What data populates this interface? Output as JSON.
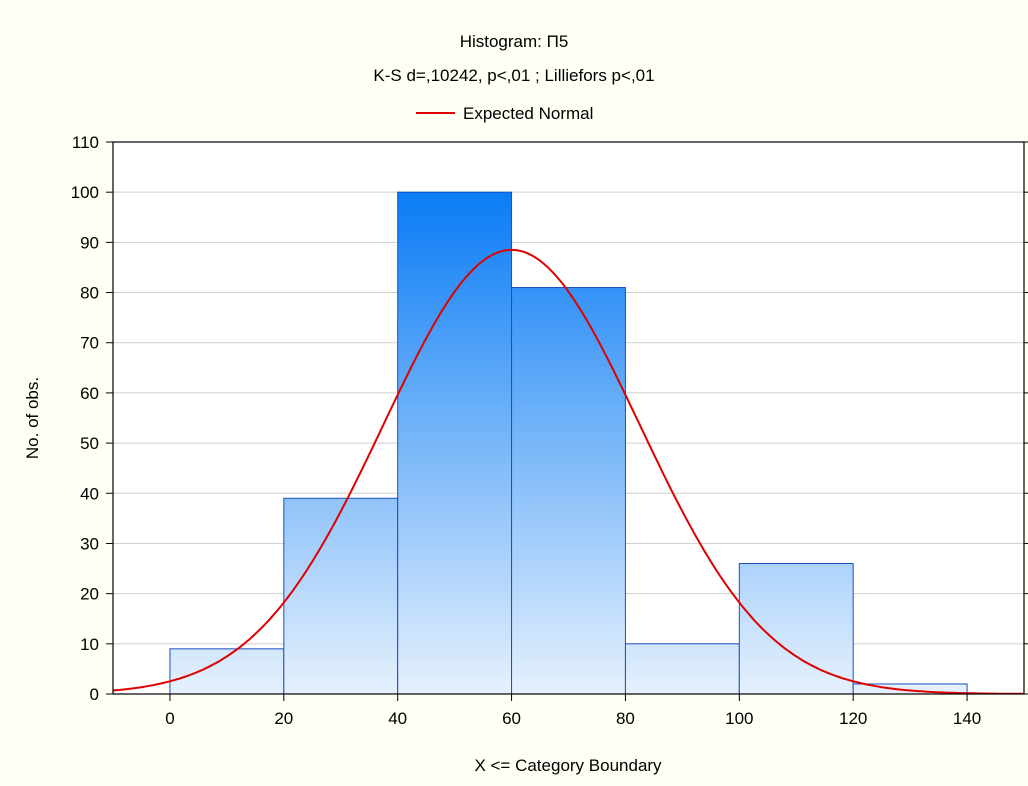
{
  "chart_data": {
    "type": "bar",
    "title": "Histogram: П5",
    "subtitle": "K-S d=,10242, p<,01 ; Lilliefors p<,01",
    "xlabel": "X <= Category Boundary",
    "ylabel": "No. of obs.",
    "xlim": [
      -10,
      150
    ],
    "ylim": [
      0,
      110
    ],
    "x_ticks": [
      0,
      20,
      40,
      60,
      80,
      100,
      120,
      140
    ],
    "y_ticks": [
      0,
      10,
      20,
      30,
      40,
      50,
      60,
      70,
      80,
      90,
      100,
      110
    ],
    "grid": true,
    "bins": [
      {
        "from": 0,
        "to": 20,
        "value": 9
      },
      {
        "from": 20,
        "to": 40,
        "value": 39
      },
      {
        "from": 40,
        "to": 60,
        "value": 100
      },
      {
        "from": 60,
        "to": 80,
        "value": 81
      },
      {
        "from": 80,
        "to": 100,
        "value": 10
      },
      {
        "from": 100,
        "to": 120,
        "value": 26
      },
      {
        "from": 120,
        "to": 140,
        "value": 2
      }
    ],
    "curve": {
      "name": "Expected Normal",
      "mean": 60,
      "sd": 22.5,
      "peak": 88.5,
      "color": "#e00000"
    },
    "legend_position": "top-center",
    "colors": {
      "bar_top": "#0a7cf5",
      "bar_bottom": "#e6f1fd",
      "bar_stroke": "#1a4fc0",
      "grid": "#cfcfcf",
      "background": "#fffff5",
      "plot_background": "#ffffff"
    }
  }
}
